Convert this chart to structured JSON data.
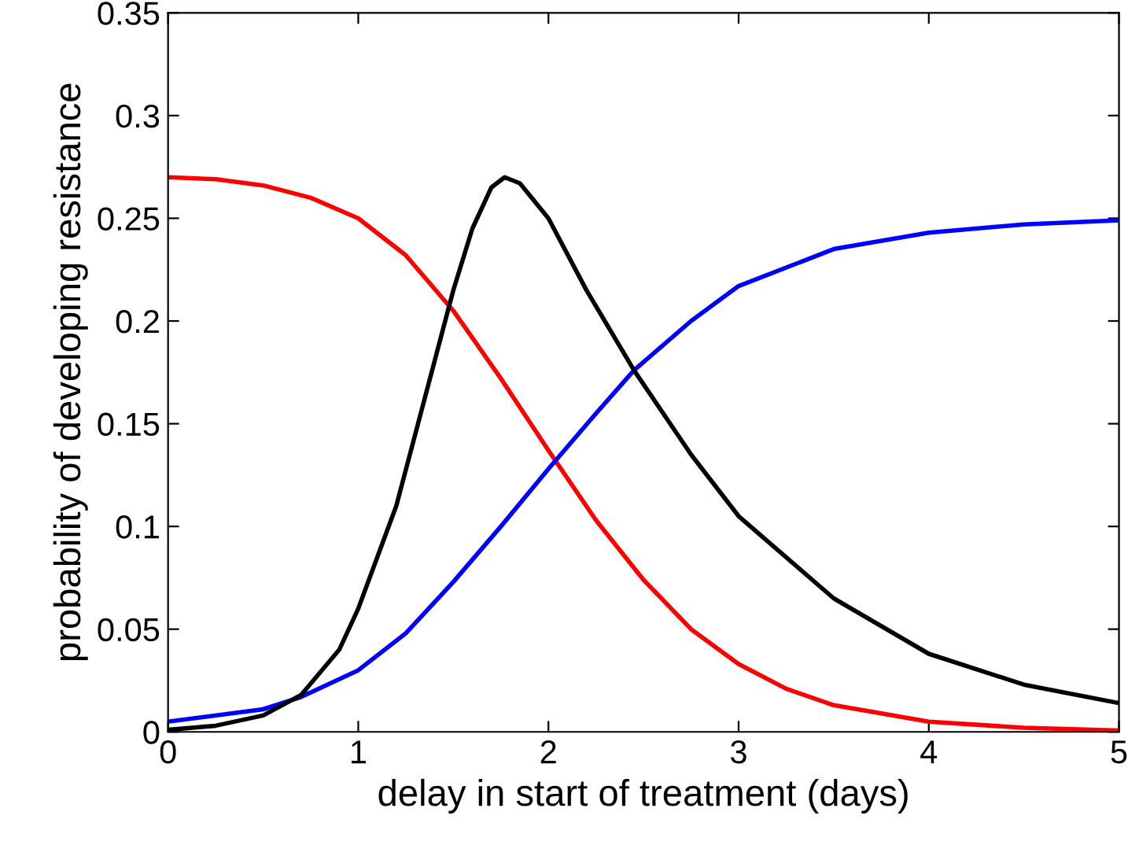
{
  "chart_data": {
    "type": "line",
    "xlabel": "delay in start of treatment (days)",
    "ylabel": "probability of developing resistance",
    "xlim": [
      0,
      5
    ],
    "ylim": [
      0,
      0.35
    ],
    "xticks": [
      0,
      1,
      2,
      3,
      4,
      5
    ],
    "yticks": [
      0,
      0.05,
      0.1,
      0.15,
      0.2,
      0.25,
      0.3,
      0.35
    ],
    "grid": false,
    "legend": false,
    "marker": "none",
    "line_style": "solid",
    "series": [
      {
        "color": "#ff0000",
        "x": [
          0,
          0.25,
          0.5,
          0.75,
          1,
          1.25,
          1.5,
          1.75,
          2,
          2.25,
          2.5,
          2.75,
          3,
          3.25,
          3.5,
          4,
          4.5,
          5
        ],
        "values": [
          0.27,
          0.269,
          0.266,
          0.26,
          0.25,
          0.232,
          0.205,
          0.172,
          0.137,
          0.103,
          0.074,
          0.05,
          0.033,
          0.021,
          0.013,
          0.005,
          0.002,
          0.0007
        ]
      },
      {
        "color": "#0000ff",
        "x": [
          0,
          0.5,
          0.7,
          1,
          1.25,
          1.5,
          1.75,
          2,
          2.25,
          2.45,
          2.75,
          3,
          3.5,
          4,
          4.5,
          5
        ],
        "values": [
          0.005,
          0.011,
          0.017,
          0.03,
          0.048,
          0.073,
          0.1,
          0.128,
          0.155,
          0.176,
          0.2,
          0.217,
          0.235,
          0.243,
          0.247,
          0.249
        ]
      },
      {
        "color": "#000000",
        "x": [
          0,
          0.25,
          0.5,
          0.7,
          0.9,
          1,
          1.2,
          1.4,
          1.5,
          1.6,
          1.7,
          1.77,
          1.85,
          2,
          2.2,
          2.45,
          2.75,
          3,
          3.5,
          4,
          4.5,
          5
        ],
        "values": [
          0.001,
          0.003,
          0.008,
          0.018,
          0.04,
          0.06,
          0.11,
          0.18,
          0.215,
          0.245,
          0.265,
          0.27,
          0.267,
          0.25,
          0.215,
          0.176,
          0.135,
          0.105,
          0.065,
          0.038,
          0.023,
          0.014
        ]
      }
    ]
  }
}
